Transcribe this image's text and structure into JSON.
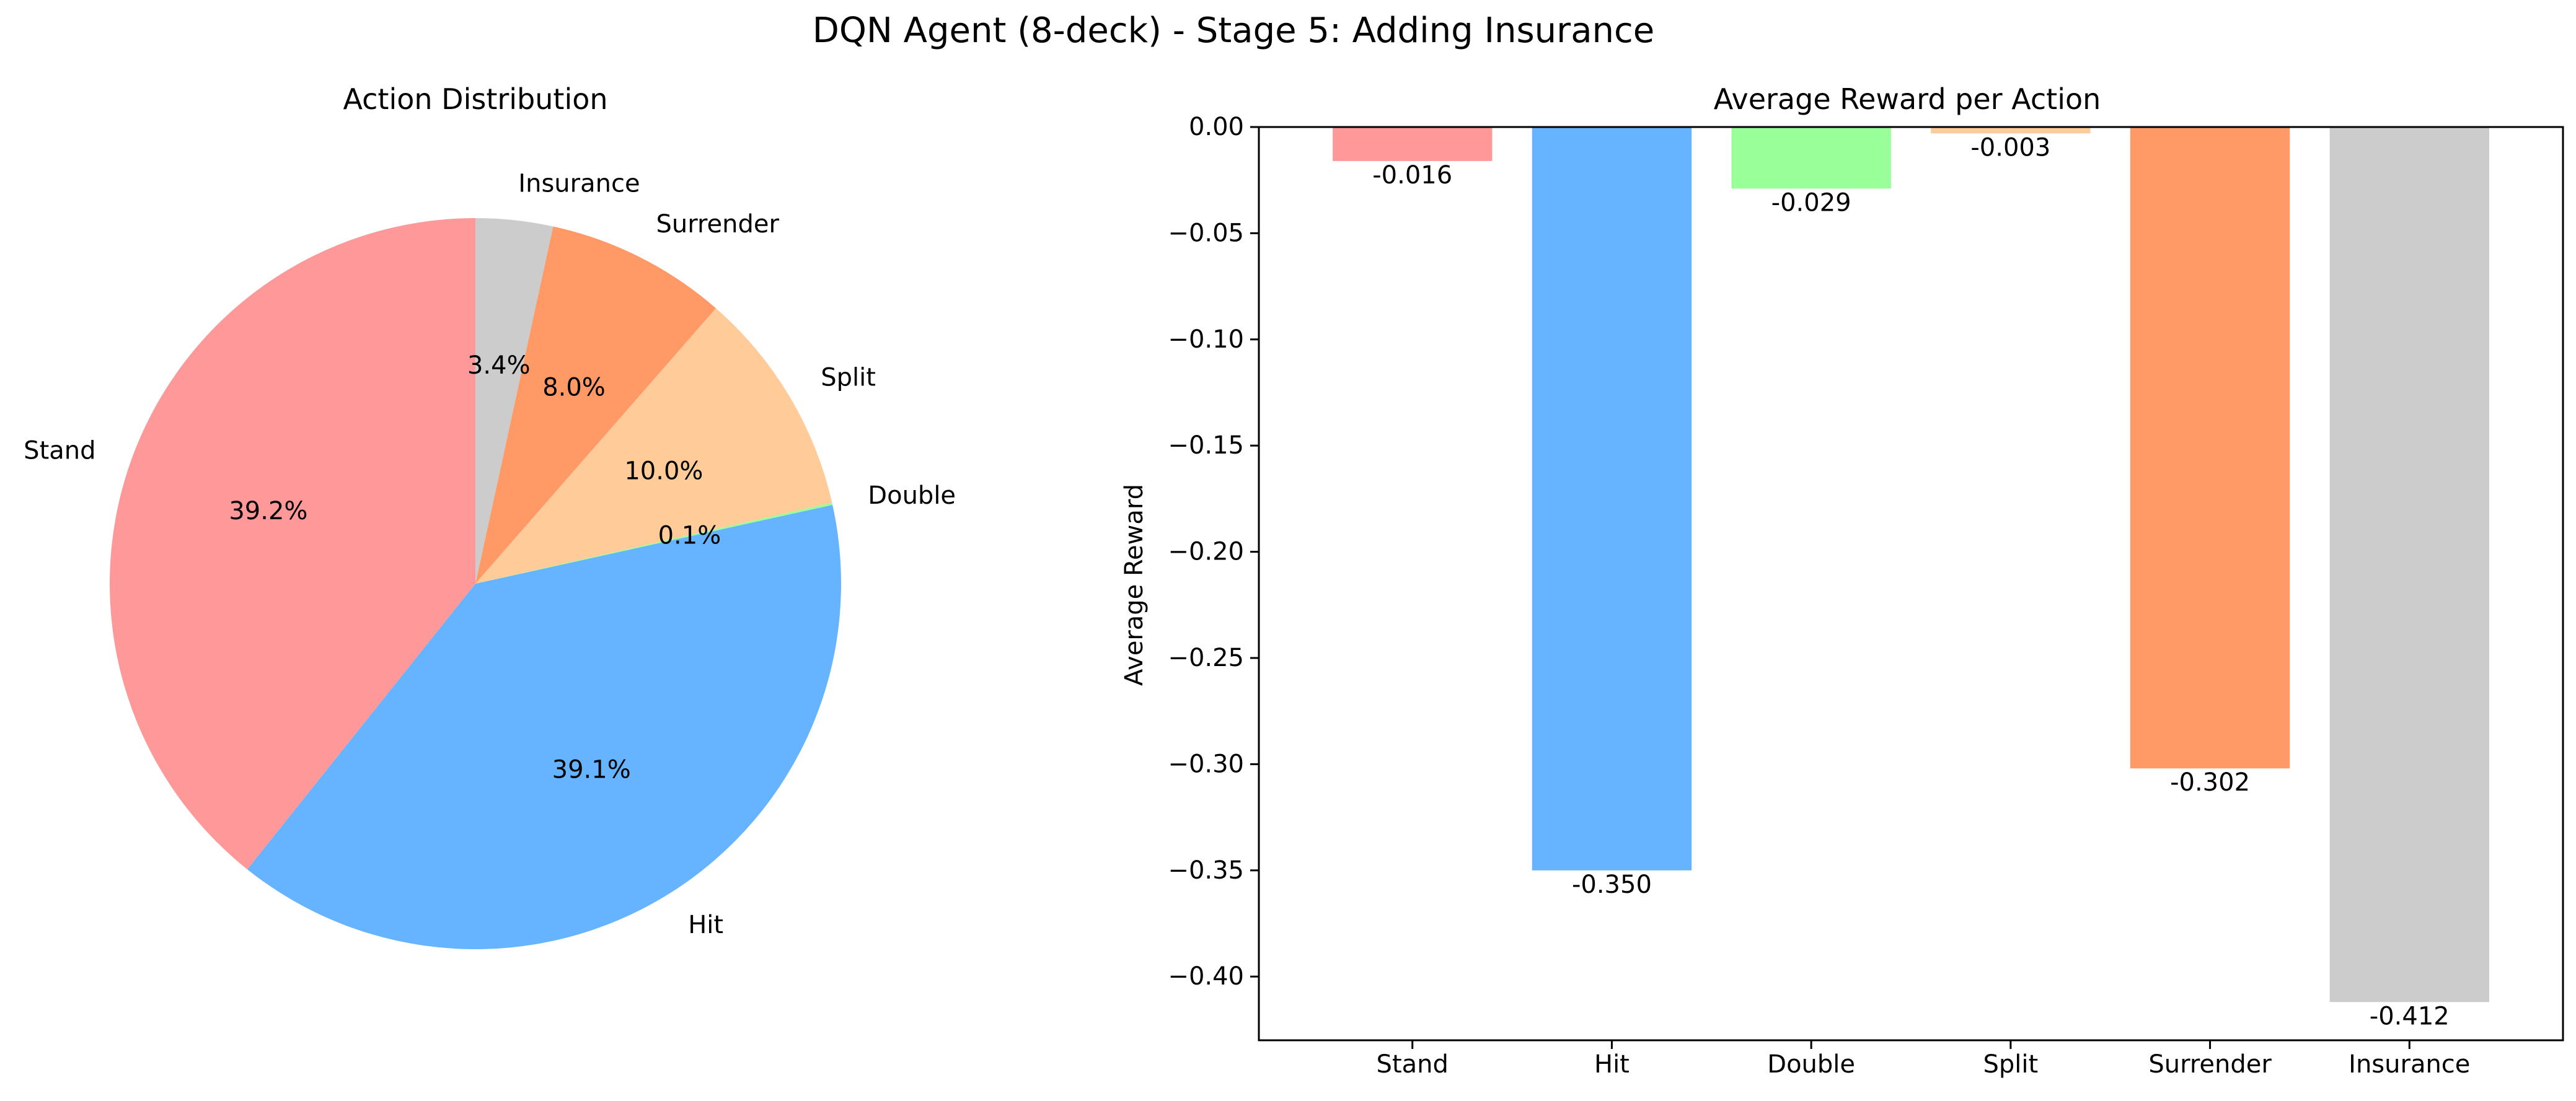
{
  "figure": {
    "suptitle": "DQN Agent (8-deck) - Stage 5: Adding Insurance"
  },
  "chart_data": [
    {
      "type": "pie",
      "title": "Action Distribution",
      "start_angle_deg": 90,
      "direction": "counterclockwise",
      "slices": [
        {
          "label": "Stand",
          "value": 39.2,
          "pct_label": "39.2%",
          "color": "#ff9999"
        },
        {
          "label": "Hit",
          "value": 39.1,
          "pct_label": "39.1%",
          "color": "#66b3ff"
        },
        {
          "label": "Double",
          "value": 0.1,
          "pct_label": "0.1%",
          "color": "#99ff99"
        },
        {
          "label": "Split",
          "value": 10.0,
          "pct_label": "10.0%",
          "color": "#ffcc99"
        },
        {
          "label": "Surrender",
          "value": 8.0,
          "pct_label": "8.0%",
          "color": "#ff9966"
        },
        {
          "label": "Insurance",
          "value": 3.4,
          "pct_label": "3.4%",
          "color": "#cccccc"
        }
      ]
    },
    {
      "type": "bar",
      "title": "Average Reward per Action",
      "xlabel": "",
      "ylabel": "Average Reward",
      "ylim": [
        -0.43,
        0.0
      ],
      "yticks": [
        0.0,
        -0.05,
        -0.1,
        -0.15,
        -0.2,
        -0.25,
        -0.3,
        -0.35,
        -0.4
      ],
      "ytick_labels": [
        "0.00",
        "−0.05",
        "−0.10",
        "−0.15",
        "−0.20",
        "−0.25",
        "−0.30",
        "−0.35",
        "−0.40"
      ],
      "categories": [
        "Stand",
        "Hit",
        "Double",
        "Split",
        "Surrender",
        "Insurance"
      ],
      "values": [
        -0.016,
        -0.35,
        -0.029,
        -0.003,
        -0.302,
        -0.412
      ],
      "value_labels": [
        "-0.016",
        "-0.350",
        "-0.029",
        "-0.003",
        "-0.302",
        "-0.412"
      ],
      "colors": [
        "#ff9999",
        "#66b3ff",
        "#99ff99",
        "#ffcc99",
        "#ff9966",
        "#cccccc"
      ],
      "grid": false
    }
  ]
}
